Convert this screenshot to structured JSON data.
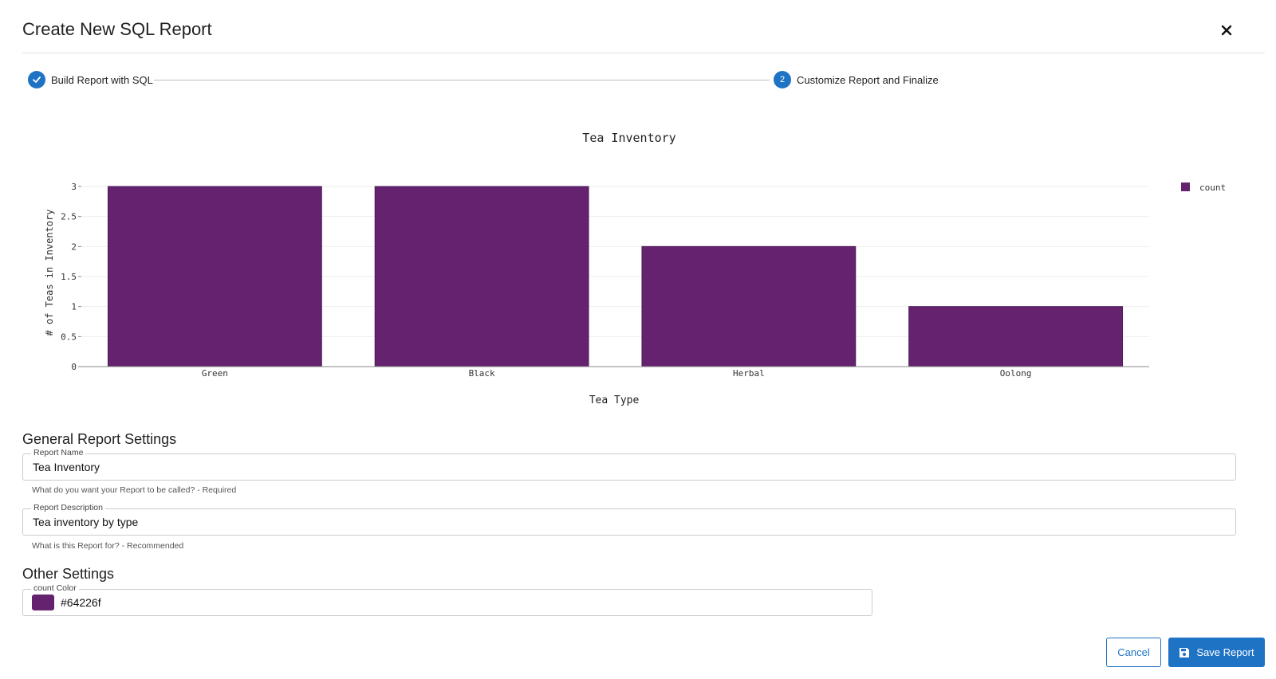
{
  "dialog": {
    "title": "Create New SQL Report"
  },
  "stepper": {
    "steps": [
      {
        "label": "Build Report with SQL",
        "status": "complete"
      },
      {
        "label": "Customize Report and Finalize",
        "number": "2",
        "status": "active"
      }
    ]
  },
  "chart_data": {
    "type": "bar",
    "title": "Tea Inventory",
    "xlabel": "Tea Type",
    "ylabel": "# of Teas in Inventory",
    "categories": [
      "Green",
      "Black",
      "Herbal",
      "Oolong"
    ],
    "series": [
      {
        "name": "count",
        "values": [
          3,
          3,
          2,
          1
        ],
        "color": "#64226f"
      }
    ],
    "ylim": [
      0,
      3
    ],
    "yticks": [
      0,
      0.5,
      1,
      1.5,
      2,
      2.5,
      3
    ],
    "grid": true,
    "legend": "top-right"
  },
  "general_settings": {
    "heading": "General Report Settings",
    "report_name": {
      "label": "Report Name",
      "value": "Tea Inventory",
      "helper": "What do you want your Report to be called? - Required"
    },
    "report_description": {
      "label": "Report Description",
      "value": "Tea inventory by type",
      "helper": "What is this Report for? - Recommended"
    }
  },
  "other_settings": {
    "heading": "Other Settings",
    "count_color": {
      "label": "count Color",
      "value": "#64226f"
    }
  },
  "actions": {
    "cancel_label": "Cancel",
    "save_label": "Save Report"
  },
  "colors": {
    "accent": "#1f73c4",
    "bar": "#64226f"
  },
  "icons": {
    "close": "close-icon",
    "check": "check-icon",
    "save": "save-icon"
  }
}
